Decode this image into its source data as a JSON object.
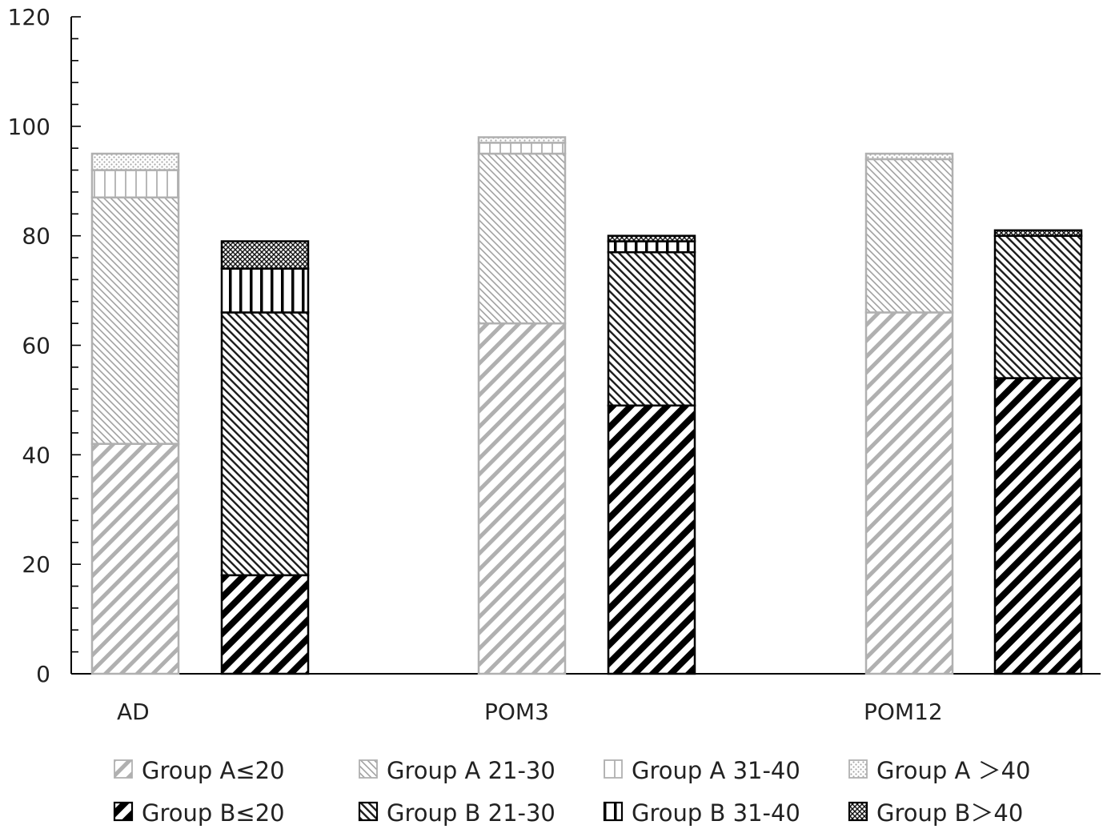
{
  "chart_data": {
    "type": "bar",
    "stacked": true,
    "categories": [
      "AD",
      "POM3",
      "POM12"
    ],
    "groups": [
      {
        "name": "Group A",
        "stacks": [
          {
            "name": "Group A≤20",
            "values": [
              42,
              64,
              66
            ]
          },
          {
            "name": "Group A 21-30",
            "values": [
              45,
              31,
              28
            ]
          },
          {
            "name": "Group A 31-40",
            "values": [
              5,
              2,
              0
            ]
          },
          {
            "name": "Group A ＞40",
            "values": [
              3,
              1,
              1
            ]
          }
        ]
      },
      {
        "name": "Group B",
        "stacks": [
          {
            "name": "Group B≤20",
            "values": [
              18,
              49,
              54
            ]
          },
          {
            "name": "Group B 21-30",
            "values": [
              48,
              28,
              26
            ]
          },
          {
            "name": "Group B 31-40",
            "values": [
              8,
              2,
              0
            ]
          },
          {
            "name": "Group B＞40",
            "values": [
              5,
              1,
              1
            ]
          }
        ]
      }
    ],
    "y_ticks": [
      "0",
      "20",
      "40",
      "60",
      "80",
      "100",
      "120"
    ],
    "ylim": [
      0,
      120
    ],
    "legend_position": "bottom",
    "grid": false
  }
}
